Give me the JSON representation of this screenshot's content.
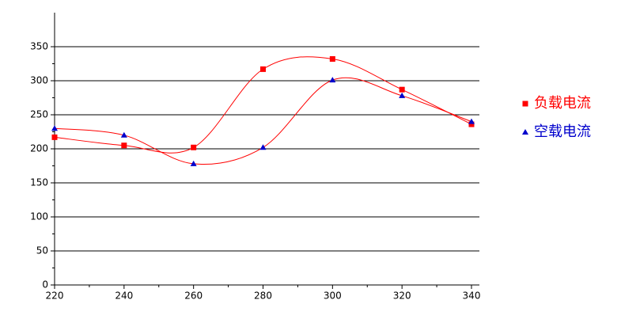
{
  "chart_data": {
    "type": "line",
    "x": [
      220,
      240,
      260,
      280,
      300,
      320,
      340
    ],
    "series": [
      {
        "name": "负载电流",
        "color": "#ff0000",
        "marker": "square",
        "values": [
          217,
          205,
          202,
          317,
          332,
          287,
          236
        ]
      },
      {
        "name": "空载电流",
        "color": "#0000cc",
        "marker": "triangle",
        "values": [
          230,
          220,
          178,
          202,
          301,
          278,
          240
        ]
      }
    ],
    "line_color": "#ff0000",
    "smooth": true,
    "xlim": [
      220,
      340
    ],
    "xticks": [
      220,
      240,
      260,
      280,
      300,
      320,
      340
    ],
    "ylim": [
      0,
      400
    ],
    "yticks": [
      0,
      50,
      100,
      150,
      200,
      250,
      300,
      350
    ],
    "grid": true,
    "legend": "right"
  }
}
